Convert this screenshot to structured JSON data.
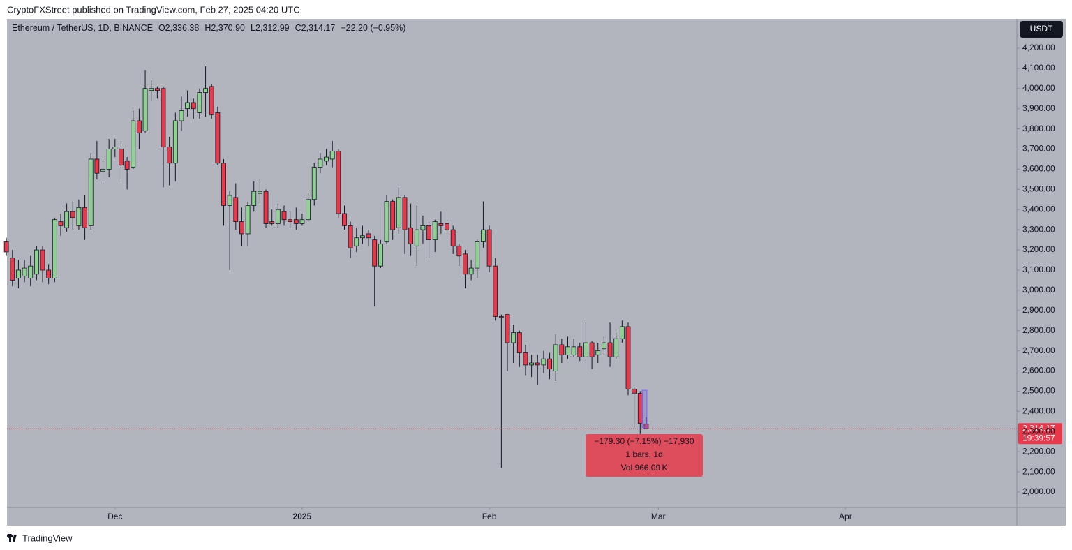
{
  "header": "CryptoFXStreet published on TradingView.com, Feb 27, 2025 04:20 UTC",
  "footer": "TradingView",
  "chart_data": {
    "type": "candlestick",
    "legend": {
      "symbol": "Ethereum / TetherUS, 1D, BINANCE",
      "open": "O2,336.38",
      "high": "H2,370.90",
      "low": "L2,312.99",
      "close": "C2,314.17",
      "change": "−22.20 (−0.95%)"
    },
    "currency": "USDT",
    "last_price": {
      "value": 2314.17,
      "label": "2,314.17"
    },
    "countdown": "19:39:57",
    "measure": {
      "change": "−179.30 (−7.15%) −17,930",
      "bars": "1 bars, 1d",
      "volume": "Vol 966.09 K"
    },
    "up_color": "#8ed193",
    "down_color": "#e8384a",
    "background": "#b2b5be",
    "grid": false,
    "x": [
      -18,
      -17,
      -16,
      -15,
      -14,
      -13,
      -12,
      -11,
      -10,
      -9,
      -8,
      -7,
      -6,
      -5,
      -4,
      -3,
      -2,
      -1,
      0,
      1,
      2,
      3,
      4,
      5,
      6,
      7,
      8,
      9,
      10,
      11,
      12,
      13,
      14,
      15,
      16,
      17,
      18,
      19,
      20,
      21,
      22,
      23,
      24,
      25,
      26,
      27,
      28,
      29,
      30,
      31,
      32,
      33,
      34,
      35,
      36,
      37,
      38,
      39,
      40,
      41,
      42,
      43,
      44,
      45,
      46,
      47,
      48,
      49,
      50,
      51,
      52,
      53,
      54,
      55,
      56,
      57,
      58,
      59,
      60,
      61,
      62,
      63,
      64,
      65,
      66,
      67,
      68,
      69,
      70,
      71,
      72,
      73,
      74,
      75,
      76,
      77,
      78,
      79,
      80,
      81,
      82,
      83,
      84,
      85,
      86,
      87,
      88
    ],
    "open": [
      3240,
      3160,
      3060,
      3070,
      3060,
      3080,
      3200,
      3100,
      3060,
      3340,
      3310,
      3390,
      3320,
      3410,
      3320,
      3650,
      3590,
      3600,
      3700,
      3700,
      3640,
      3610,
      3840,
      3790,
      3990,
      4000,
      4000,
      3710,
      3630,
      3840,
      3900,
      3930,
      3880,
      3980,
      4010,
      3880,
      3630,
      3420,
      3460,
      3340,
      3280,
      3420,
      3480,
      3490,
      3340,
      3330,
      3390,
      3350,
      3350,
      3330,
      3350,
      3450,
      3610,
      3640,
      3650,
      3690,
      3380,
      3320,
      3220,
      3260,
      3280,
      3250,
      3120,
      3240,
      3440,
      3310,
      3460,
      3310,
      3220,
      3300,
      3320,
      3250,
      3330,
      3330,
      3300,
      3220,
      3180,
      3080,
      3110,
      3240,
      3300,
      3120,
      2870,
      2880,
      2740,
      2790,
      2690,
      2630,
      2640,
      2630,
      2660,
      2600,
      2730,
      2680,
      2680,
      2720,
      2670,
      2740,
      2680,
      2710,
      2740,
      2670,
      2760,
      2820,
      2510,
      2490,
      2336.38
    ],
    "high": [
      3260,
      3200,
      3150,
      3150,
      3170,
      3220,
      3220,
      3130,
      3360,
      3380,
      3430,
      3440,
      3450,
      3470,
      3680,
      3740,
      3640,
      3750,
      3750,
      3740,
      3660,
      3890,
      3900,
      4090,
      4040,
      4010,
      4010,
      3760,
      3880,
      3960,
      3990,
      3950,
      4000,
      4110,
      4020,
      3910,
      3650,
      3490,
      3530,
      3410,
      3440,
      3540,
      3550,
      3500,
      3400,
      3430,
      3420,
      3390,
      3410,
      3380,
      3480,
      3630,
      3680,
      3700,
      3740,
      3700,
      3420,
      3340,
      3310,
      3320,
      3300,
      3270,
      3250,
      3470,
      3450,
      3510,
      3470,
      3430,
      3420,
      3370,
      3340,
      3350,
      3390,
      3350,
      3320,
      3230,
      3200,
      3150,
      3250,
      3440,
      3320,
      3160,
      2880,
      2880,
      2830,
      2800,
      2730,
      2680,
      2680,
      2700,
      2690,
      2780,
      2760,
      2770,
      2760,
      2740,
      2840,
      2750,
      2740,
      2770,
      2840,
      2790,
      2850,
      2840,
      2520,
      2500,
      2370.9
    ],
    "low": [
      3170,
      3020,
      3010,
      3040,
      3020,
      3050,
      3040,
      3030,
      3040,
      3270,
      3290,
      3300,
      3300,
      3250,
      3300,
      3550,
      3540,
      3560,
      3660,
      3550,
      3500,
      3600,
      3700,
      3780,
      3940,
      3950,
      3510,
      3520,
      3540,
      3790,
      3860,
      3850,
      3850,
      3860,
      3850,
      3620,
      3320,
      3100,
      3300,
      3220,
      3220,
      3390,
      3430,
      3310,
      3320,
      3310,
      3320,
      3310,
      3300,
      3320,
      3340,
      3420,
      3580,
      3620,
      3610,
      3360,
      3300,
      3160,
      3190,
      3230,
      3220,
      2920,
      3110,
      3230,
      3250,
      3280,
      3180,
      3170,
      3120,
      3230,
      3160,
      3190,
      3280,
      3250,
      3180,
      3120,
      3010,
      3050,
      3060,
      3210,
      3090,
      2850,
      2120,
      2600,
      2640,
      2620,
      2580,
      2570,
      2530,
      2590,
      2560,
      2550,
      2640,
      2660,
      2670,
      2650,
      2650,
      2610,
      2640,
      2680,
      2620,
      2660,
      2740,
      2480,
      2320,
      2250,
      2312.99
    ],
    "close": [
      3190,
      3050,
      3100,
      3110,
      3120,
      3200,
      3100,
      3060,
      3350,
      3320,
      3390,
      3360,
      3410,
      3310,
      3650,
      3580,
      3600,
      3700,
      3710,
      3620,
      3600,
      3840,
      3780,
      4000,
      4000,
      3990,
      3710,
      3630,
      3840,
      3890,
      3930,
      3900,
      3980,
      4000,
      3870,
      3630,
      3420,
      3470,
      3340,
      3280,
      3420,
      3490,
      3490,
      3330,
      3330,
      3400,
      3350,
      3340,
      3330,
      3350,
      3450,
      3610,
      3650,
      3660,
      3690,
      3380,
      3320,
      3210,
      3260,
      3270,
      3260,
      3120,
      3230,
      3440,
      3300,
      3460,
      3300,
      3230,
      3300,
      3320,
      3250,
      3340,
      3320,
      3300,
      3220,
      3170,
      3080,
      3110,
      3240,
      3300,
      3120,
      2870,
      2865,
      2740,
      2790,
      2690,
      2630,
      2640,
      2630,
      2660,
      2610,
      2730,
      2680,
      2720,
      2720,
      2670,
      2740,
      2670,
      2700,
      2740,
      2670,
      2760,
      2820,
      2510,
      2490,
      2340,
      2314.17
    ],
    "xlim": [
      -17.9,
      149.4
    ],
    "xticks": [
      {
        "value": 0,
        "label": "Dec"
      },
      {
        "value": 31,
        "label": "2025"
      },
      {
        "value": 62,
        "label": "Feb"
      },
      {
        "value": 90,
        "label": "Mar"
      },
      {
        "value": 121,
        "label": "Apr"
      }
    ],
    "ylim": [
      1924,
      4345
    ],
    "yticks": [
      {
        "value": 2000,
        "label": "2,000.00"
      },
      {
        "value": 2100,
        "label": "2,100.00"
      },
      {
        "value": 2200,
        "label": "2,200.00"
      },
      {
        "value": 2300,
        "label": "2,300.00"
      },
      {
        "value": 2400,
        "label": "2,400.00"
      },
      {
        "value": 2500,
        "label": "2,500.00"
      },
      {
        "value": 2600,
        "label": "2,600.00"
      },
      {
        "value": 2700,
        "label": "2,700.00"
      },
      {
        "value": 2800,
        "label": "2,800.00"
      },
      {
        "value": 2900,
        "label": "2,900.00"
      },
      {
        "value": 3000,
        "label": "3,000.00"
      },
      {
        "value": 3100,
        "label": "3,100.00"
      },
      {
        "value": 3200,
        "label": "3,200.00"
      },
      {
        "value": 3300,
        "label": "3,300.00"
      },
      {
        "value": 3400,
        "label": "3,400.00"
      },
      {
        "value": 3500,
        "label": "3,500.00"
      },
      {
        "value": 3600,
        "label": "3,600.00"
      },
      {
        "value": 3700,
        "label": "3,700.00"
      },
      {
        "value": 3800,
        "label": "3,800.00"
      },
      {
        "value": 3900,
        "label": "3,900.00"
      },
      {
        "value": 4000,
        "label": "4,000.00"
      },
      {
        "value": 4100,
        "label": "4,100.00"
      },
      {
        "value": 4200,
        "label": "4,200.00"
      }
    ]
  }
}
